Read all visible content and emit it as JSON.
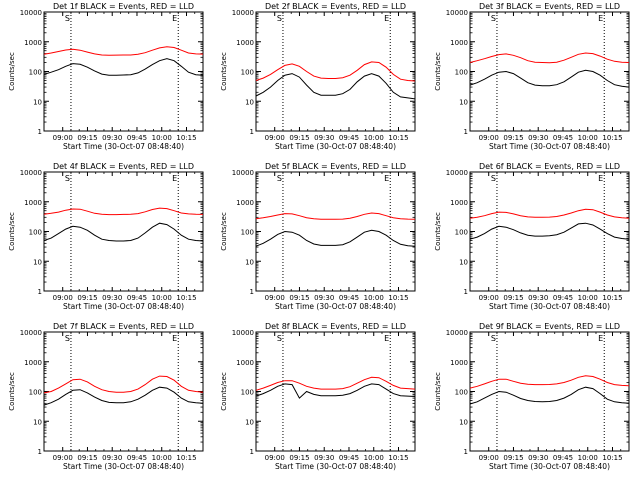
{
  "figure": {
    "shared": {
      "xlabel": "Start Time (30-Oct-07 08:48:40)",
      "ylabel": "Counts/sec",
      "x_ticks": [
        "09:00",
        "09:15",
        "09:30",
        "09:45",
        "10:00",
        "10:15"
      ],
      "y_ticks": [
        "1",
        "10",
        "100",
        "1000",
        "10000"
      ],
      "y_scale": "log",
      "ylim": [
        1,
        10000
      ],
      "xlim": [
        "08:48:40",
        "10:25:00"
      ],
      "vline_times": [
        "09:05",
        "10:10"
      ],
      "corner_marks": [
        "S",
        "E"
      ],
      "colors": {
        "events": "#000000",
        "lld": "#ff0000"
      }
    }
  },
  "chart_data": [
    {
      "type": "line",
      "title": "Det 1f BLACK = Events, RED = LLD",
      "series": [
        {
          "name": "LLD",
          "color": "#ff0000",
          "values": [
            380,
            420,
            470,
            530,
            560,
            520,
            450,
            390,
            360,
            350,
            355,
            360,
            360,
            380,
            430,
            520,
            620,
            680,
            640,
            520,
            420,
            390,
            385
          ]
        },
        {
          "name": "Events",
          "color": "#000000",
          "values": [
            80,
            95,
            115,
            150,
            185,
            175,
            140,
            105,
            82,
            75,
            75,
            76,
            78,
            90,
            120,
            170,
            230,
            270,
            230,
            150,
            95,
            78,
            75
          ]
        }
      ]
    },
    {
      "type": "line",
      "title": "Det 2f BLACK = Events, RED = LLD",
      "series": [
        {
          "name": "LLD",
          "color": "#ff0000",
          "values": [
            50,
            60,
            80,
            115,
            160,
            180,
            150,
            100,
            70,
            60,
            58,
            58,
            62,
            75,
            110,
            170,
            210,
            200,
            140,
            80,
            55,
            50,
            48
          ]
        },
        {
          "name": "Events",
          "color": "#000000",
          "values": [
            15,
            20,
            30,
            50,
            75,
            85,
            65,
            35,
            20,
            16,
            16,
            16,
            18,
            25,
            45,
            70,
            85,
            70,
            40,
            20,
            14,
            13,
            12
          ]
        }
      ]
    },
    {
      "type": "line",
      "title": "Det 3f BLACK = Events, RED = LLD",
      "series": [
        {
          "name": "LLD",
          "color": "#ff0000",
          "values": [
            200,
            230,
            270,
            320,
            370,
            390,
            350,
            290,
            230,
            205,
            200,
            198,
            205,
            240,
            300,
            380,
            420,
            400,
            330,
            260,
            220,
            205,
            200
          ]
        },
        {
          "name": "Events",
          "color": "#000000",
          "values": [
            35,
            42,
            55,
            75,
            95,
            100,
            85,
            60,
            42,
            35,
            33,
            33,
            36,
            45,
            65,
            95,
            110,
            100,
            75,
            50,
            36,
            32,
            30
          ]
        }
      ]
    },
    {
      "type": "line",
      "title": "Det 4f BLACK = Events, RED = LLD",
      "series": [
        {
          "name": "LLD",
          "color": "#ff0000",
          "values": [
            380,
            410,
            450,
            520,
            570,
            560,
            480,
            410,
            380,
            370,
            370,
            375,
            380,
            400,
            460,
            550,
            610,
            590,
            500,
            420,
            390,
            380,
            375
          ]
        },
        {
          "name": "Events",
          "color": "#000000",
          "values": [
            50,
            60,
            85,
            120,
            150,
            140,
            110,
            75,
            55,
            50,
            48,
            48,
            50,
            60,
            90,
            140,
            190,
            170,
            120,
            75,
            55,
            50,
            48
          ]
        }
      ]
    },
    {
      "type": "line",
      "title": "Det 5f BLACK = Events, RED = LLD",
      "series": [
        {
          "name": "LLD",
          "color": "#ff0000",
          "values": [
            270,
            290,
            320,
            360,
            400,
            390,
            340,
            290,
            270,
            260,
            258,
            258,
            262,
            280,
            320,
            380,
            420,
            400,
            340,
            290,
            270,
            262,
            260
          ]
        },
        {
          "name": "Events",
          "color": "#000000",
          "values": [
            32,
            40,
            55,
            80,
            100,
            95,
            75,
            50,
            38,
            34,
            34,
            34,
            36,
            45,
            65,
            95,
            110,
            100,
            75,
            50,
            37,
            33,
            32
          ]
        }
      ]
    },
    {
      "type": "line",
      "title": "Det 6f BLACK = Events, RED = LLD",
      "series": [
        {
          "name": "LLD",
          "color": "#ff0000",
          "values": [
            280,
            300,
            340,
            400,
            450,
            440,
            390,
            340,
            310,
            300,
            300,
            305,
            320,
            360,
            420,
            500,
            560,
            540,
            450,
            360,
            310,
            290,
            280
          ]
        },
        {
          "name": "Events",
          "color": "#000000",
          "values": [
            55,
            65,
            85,
            120,
            150,
            140,
            115,
            90,
            75,
            70,
            70,
            72,
            78,
            95,
            130,
            180,
            190,
            165,
            120,
            85,
            65,
            58,
            55
          ]
        }
      ]
    },
    {
      "type": "line",
      "title": "Det 7f BLACK = Events, RED = LLD",
      "series": [
        {
          "name": "LLD",
          "color": "#ff0000",
          "values": [
            90,
            100,
            130,
            180,
            250,
            260,
            210,
            150,
            115,
            100,
            95,
            95,
            100,
            120,
            170,
            260,
            330,
            320,
            240,
            150,
            110,
            100,
            95
          ]
        },
        {
          "name": "Events",
          "color": "#000000",
          "values": [
            35,
            42,
            55,
            80,
            110,
            115,
            90,
            65,
            50,
            43,
            42,
            42,
            45,
            55,
            75,
            110,
            140,
            130,
            95,
            60,
            45,
            42,
            40
          ]
        }
      ]
    },
    {
      "type": "line",
      "title": "Det 8f BLACK = Events, RED = LLD",
      "series": [
        {
          "name": "LLD",
          "color": "#ff0000",
          "values": [
            110,
            130,
            160,
            200,
            230,
            230,
            190,
            150,
            130,
            120,
            120,
            120,
            125,
            145,
            190,
            250,
            300,
            290,
            220,
            160,
            130,
            125,
            120
          ]
        },
        {
          "name": "Events",
          "color": "#000000",
          "values": [
            70,
            85,
            110,
            150,
            180,
            170,
            60,
            100,
            80,
            72,
            72,
            72,
            75,
            85,
            110,
            150,
            180,
            170,
            120,
            85,
            72,
            70,
            68
          ]
        }
      ]
    },
    {
      "type": "line",
      "title": "Det 9f BLACK = Events, RED = LLD",
      "series": [
        {
          "name": "LLD",
          "color": "#ff0000",
          "values": [
            130,
            150,
            180,
            220,
            260,
            260,
            220,
            190,
            175,
            170,
            170,
            172,
            180,
            200,
            240,
            300,
            340,
            320,
            260,
            200,
            170,
            160,
            155
          ]
        },
        {
          "name": "Events",
          "color": "#000000",
          "values": [
            38,
            45,
            60,
            80,
            100,
            95,
            75,
            58,
            50,
            46,
            45,
            46,
            50,
            60,
            80,
            115,
            140,
            125,
            85,
            55,
            45,
            42,
            40
          ]
        }
      ]
    }
  ]
}
